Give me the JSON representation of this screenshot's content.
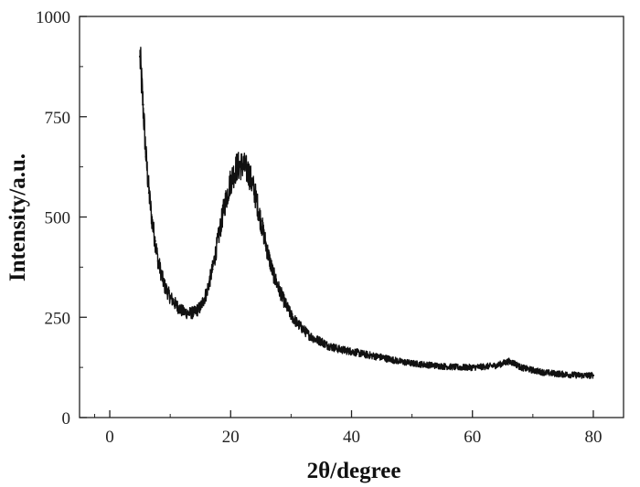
{
  "chart_data": {
    "type": "line",
    "xlabel": "2θ/degree",
    "ylabel": "Intensity/a.u.",
    "xlim": [
      -5,
      85
    ],
    "ylim": [
      0,
      1000
    ],
    "x_ticks": [
      0,
      20,
      40,
      60,
      80
    ],
    "y_ticks": [
      0,
      250,
      500,
      750,
      1000
    ],
    "x_tick_labels": [
      "0",
      "20",
      "40",
      "60",
      "80"
    ],
    "y_tick_labels": [
      "0",
      "250",
      "500",
      "750",
      "1000"
    ],
    "grid": false,
    "legend": "none",
    "series": [
      {
        "color": "#111111",
        "x": [
          5,
          5.5,
          6,
          6.5,
          7,
          7.5,
          8,
          9,
          10,
          11,
          12,
          13,
          14,
          15,
          16,
          17,
          18,
          19,
          20,
          21,
          22,
          23,
          24,
          25,
          26,
          27,
          28,
          29,
          30,
          31,
          32,
          33,
          34,
          35,
          36,
          38,
          40,
          42,
          45,
          48,
          50,
          55,
          58,
          60,
          62,
          64,
          65,
          66,
          67,
          68,
          70,
          72,
          75,
          78,
          80
        ],
        "y": [
          900,
          780,
          650,
          560,
          490,
          440,
          390,
          330,
          300,
          280,
          265,
          260,
          262,
          275,
          310,
          370,
          450,
          530,
          590,
          625,
          630,
          610,
          560,
          490,
          420,
          360,
          320,
          285,
          255,
          235,
          220,
          205,
          195,
          190,
          180,
          170,
          165,
          158,
          150,
          140,
          135,
          128,
          125,
          125,
          127,
          130,
          135,
          140,
          135,
          125,
          118,
          112,
          108,
          105,
          105
        ]
      }
    ]
  }
}
